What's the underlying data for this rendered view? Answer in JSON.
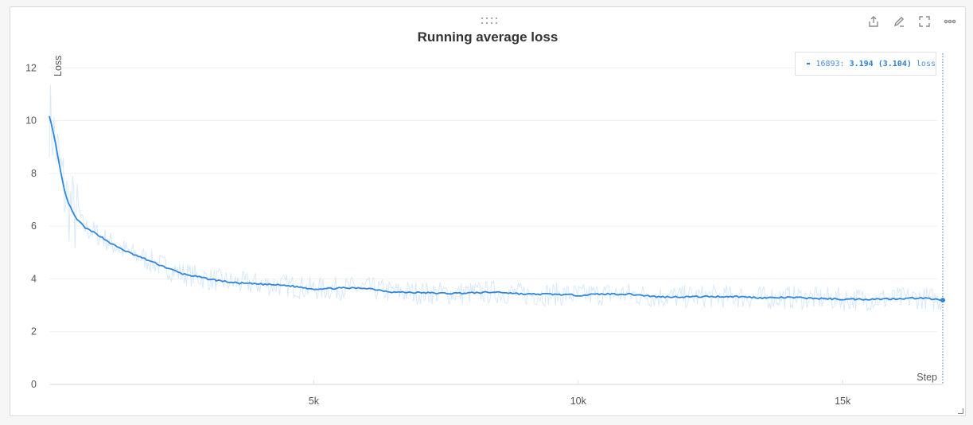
{
  "panel": {
    "title": "Running average loss"
  },
  "toolbar": {
    "icons": [
      "share-icon",
      "edit-icon",
      "fullscreen-icon",
      "more-icon"
    ]
  },
  "legend": {
    "step": "16893",
    "value": "3.194",
    "smoothed": "(3.104)",
    "series": "loss",
    "color": "#2e86de"
  },
  "chart_data": {
    "type": "line",
    "title": "Running average loss",
    "xlabel": "Step",
    "ylabel": "Loss",
    "xlim": [
      0,
      16893
    ],
    "ylim": [
      0,
      12.4
    ],
    "x_ticks": [
      {
        "value": 5000,
        "label": "5k"
      },
      {
        "value": 10000,
        "label": "10k"
      },
      {
        "value": 15000,
        "label": "15k"
      }
    ],
    "y_ticks": [
      0,
      2,
      4,
      6,
      8,
      10,
      12
    ],
    "grid": true,
    "legend_position": "top-right",
    "series": [
      {
        "name": "loss",
        "color": "#2e86de",
        "x": [
          0,
          100,
          200,
          300,
          400,
          500,
          700,
          900,
          1200,
          1500,
          2000,
          2500,
          3000,
          3500,
          4000,
          4500,
          5000,
          5500,
          6000,
          6500,
          7000,
          7500,
          8000,
          8500,
          9000,
          9500,
          10000,
          10500,
          11000,
          11500,
          12000,
          12500,
          13000,
          13500,
          14000,
          14500,
          15000,
          15500,
          16000,
          16500,
          16893
        ],
        "y": [
          10.2,
          9.3,
          8.2,
          7.2,
          6.7,
          6.3,
          5.9,
          5.7,
          5.3,
          5.0,
          4.6,
          4.2,
          4.0,
          3.85,
          3.8,
          3.75,
          3.62,
          3.65,
          3.65,
          3.5,
          3.48,
          3.45,
          3.47,
          3.5,
          3.42,
          3.42,
          3.38,
          3.43,
          3.42,
          3.32,
          3.32,
          3.33,
          3.33,
          3.28,
          3.3,
          3.26,
          3.23,
          3.23,
          3.25,
          3.28,
          3.194
        ]
      }
    ]
  }
}
